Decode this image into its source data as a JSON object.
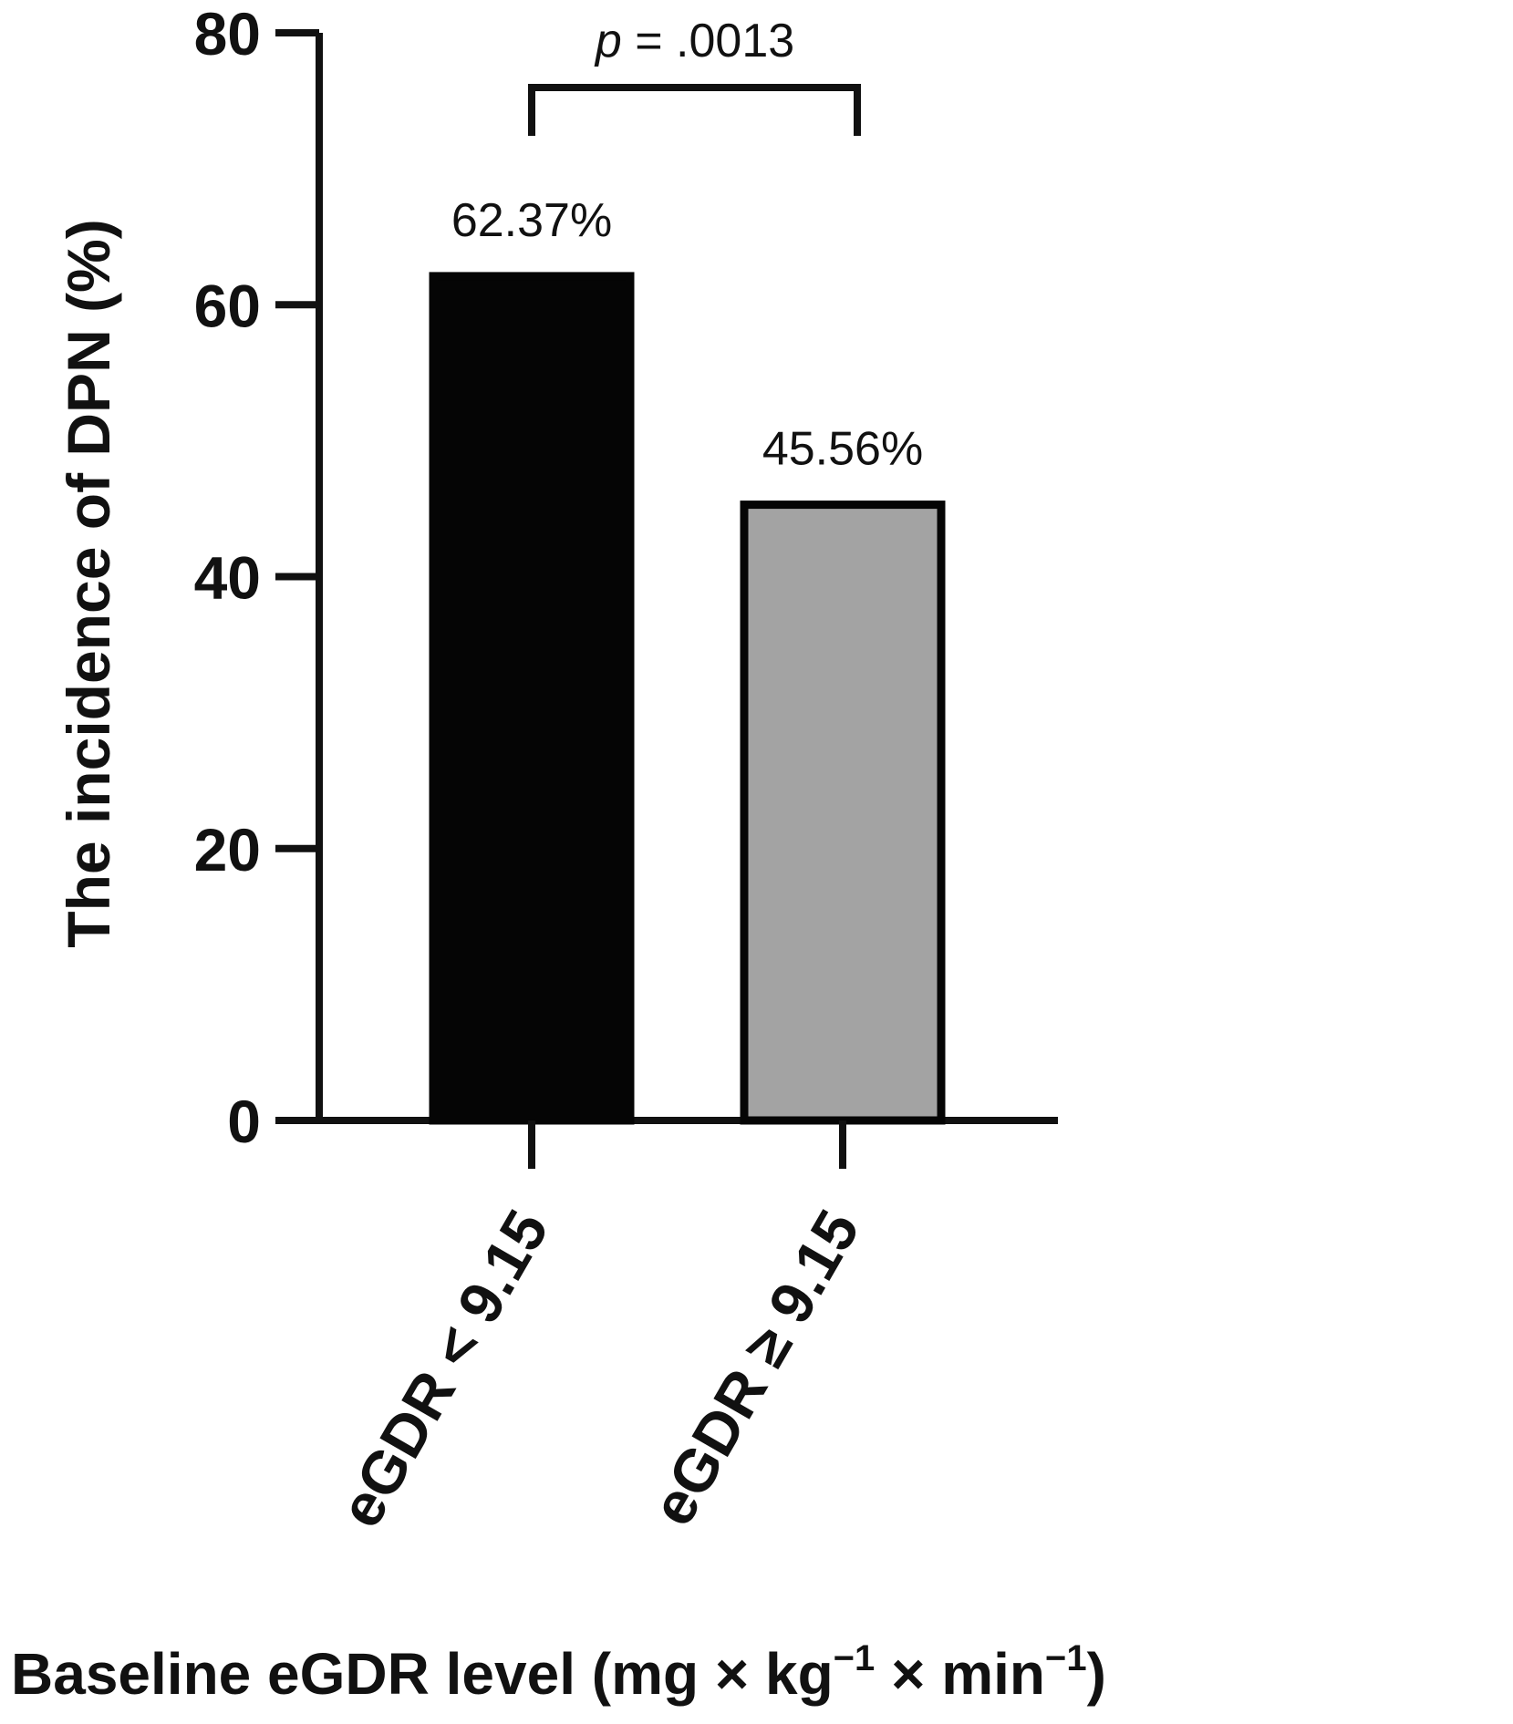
{
  "chart_data": {
    "type": "bar",
    "categories": [
      "eGDR < 9.15",
      "eGDR ≥ 9.15"
    ],
    "values": [
      62.37,
      45.56
    ],
    "data_labels": [
      "62.37%",
      "45.56%"
    ],
    "ylabel": "The incidence of DPN (%)",
    "xlabel": {
      "main": "Baseline eGDR level (mg × kg",
      "sup1": "−1",
      "mid": " × min",
      "sup2": "−1",
      "end": ")"
    },
    "ylim": [
      0,
      80
    ],
    "yticks": [
      "0",
      "20",
      "40",
      "60",
      "80"
    ],
    "bar_colors": [
      "#050505",
      "#a3a3a3"
    ],
    "significance": {
      "p_symbol": "p",
      "p_text": " = .0013"
    },
    "grid": false,
    "legend": "none"
  }
}
